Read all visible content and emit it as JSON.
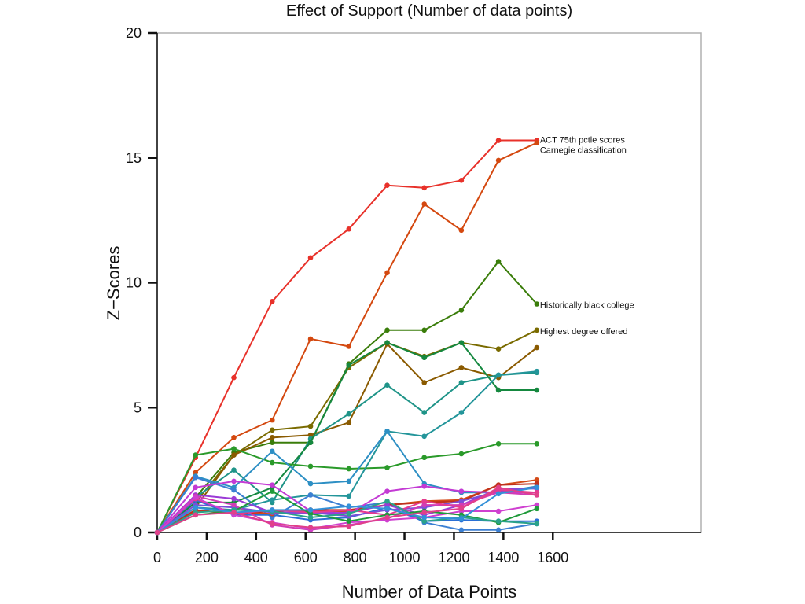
{
  "chart_data": {
    "type": "line",
    "title": "Effect of Support (Number of data points)",
    "xlabel": "Number of Data Points",
    "ylabel": "Z−Scores",
    "xlim": [
      0,
      2200
    ],
    "ylim": [
      0,
      20
    ],
    "xticks": [
      0,
      200,
      400,
      600,
      800,
      1000,
      1200,
      1400,
      1600
    ],
    "yticks": [
      0,
      5,
      10,
      15,
      20
    ],
    "grid": false,
    "legend": "none",
    "x": [
      0,
      155,
      310,
      465,
      620,
      775,
      930,
      1080,
      1230,
      1380,
      1535
    ],
    "series": [
      {
        "name": "ACT 75th pctle scores",
        "color": "#e8312a",
        "values": [
          0,
          3.0,
          6.2,
          9.25,
          11.0,
          12.15,
          13.9,
          13.8,
          14.1,
          15.7,
          15.7
        ]
      },
      {
        "name": "Carnegie classification",
        "color": "#d4480f",
        "values": [
          0,
          2.4,
          3.8,
          4.5,
          7.75,
          7.45,
          10.4,
          13.15,
          12.1,
          14.9,
          15.6
        ]
      },
      {
        "color": "#3a7d0a",
        "values": [
          0,
          1.4,
          3.2,
          3.6,
          3.6,
          6.75,
          8.1,
          8.1,
          8.9,
          10.85,
          9.15
        ]
      },
      {
        "color": "#7a6b00",
        "values": [
          0,
          1.2,
          3.1,
          4.1,
          4.25,
          6.6,
          7.6,
          7.05,
          7.6,
          7.35,
          8.1
        ]
      },
      {
        "color": "#8a5a00",
        "values": [
          0,
          1.0,
          3.1,
          3.8,
          3.9,
          4.4,
          7.55,
          6.0,
          6.6,
          6.2,
          7.4
        ]
      },
      {
        "color": "#1f9488",
        "values": [
          0,
          1.4,
          2.5,
          1.2,
          3.75,
          4.75,
          5.9,
          4.8,
          6.0,
          6.3,
          6.4
        ]
      },
      {
        "color": "#15883f",
        "values": [
          0,
          1.2,
          1.2,
          1.8,
          3.6,
          6.7,
          7.6,
          7.0,
          7.6,
          5.7,
          5.7
        ]
      },
      {
        "color": "#2a9a2a",
        "values": [
          0,
          3.1,
          3.35,
          2.8,
          2.65,
          2.55,
          2.6,
          3.0,
          3.15,
          3.55,
          3.55
        ]
      },
      {
        "color": "#23959a",
        "values": [
          0,
          1.0,
          0.9,
          1.3,
          1.5,
          1.45,
          4.05,
          3.85,
          4.8,
          6.3,
          6.45
        ]
      },
      {
        "color": "#2d8fc4",
        "values": [
          0,
          2.25,
          1.8,
          3.25,
          1.95,
          2.05,
          4.05,
          1.95,
          1.6,
          1.6,
          1.85
        ]
      },
      {
        "color": "#3b7fd3",
        "values": [
          0,
          2.2,
          1.7,
          0.6,
          1.5,
          1.0,
          1.2,
          0.4,
          0.1,
          0.1,
          0.35
        ]
      },
      {
        "color": "#2a6fd6",
        "values": [
          0,
          1.3,
          0.7,
          0.7,
          0.5,
          0.6,
          1.0,
          0.45,
          0.5,
          0.45,
          0.45
        ]
      },
      {
        "color": "#d44a18",
        "values": [
          0,
          0.85,
          0.8,
          0.75,
          0.85,
          0.85,
          1.1,
          1.25,
          1.3,
          1.9,
          2.1
        ]
      },
      {
        "color": "#c0311e",
        "values": [
          0,
          0.9,
          0.75,
          0.85,
          0.9,
          0.9,
          1.1,
          1.2,
          1.25,
          1.9,
          1.95
        ]
      },
      {
        "color": "#c33ad4",
        "values": [
          0,
          1.8,
          2.05,
          1.9,
          0.85,
          0.75,
          1.65,
          1.85,
          1.65,
          1.6,
          1.6
        ]
      },
      {
        "color": "#9b3ad6",
        "values": [
          0,
          1.5,
          1.35,
          0.8,
          0.75,
          0.8,
          1.1,
          0.7,
          1.1,
          1.75,
          1.75
        ]
      },
      {
        "color": "#7a4fd8",
        "values": [
          0,
          1.1,
          1.0,
          0.8,
          0.8,
          0.65,
          0.9,
          1.0,
          1.25,
          1.65,
          1.8
        ]
      },
      {
        "color": "#d13cb5",
        "values": [
          0,
          1.45,
          1.1,
          0.3,
          0.1,
          0.3,
          0.55,
          1.1,
          1.1,
          1.6,
          1.5
        ]
      },
      {
        "color": "#e63a8f",
        "values": [
          0,
          1.35,
          0.75,
          0.9,
          0.8,
          0.9,
          0.7,
          1.25,
          1.0,
          1.7,
          1.6
        ]
      },
      {
        "color": "#cf40d0",
        "values": [
          0,
          1.4,
          0.7,
          0.4,
          0.15,
          0.4,
          0.5,
          0.6,
          0.85,
          0.85,
          1.1
        ]
      },
      {
        "color": "#1f9a3a",
        "values": [
          0,
          0.7,
          0.85,
          1.65,
          0.75,
          0.45,
          0.7,
          0.85,
          0.7,
          0.4,
          0.95
        ]
      },
      {
        "color": "#2aa28a",
        "values": [
          0,
          0.8,
          0.9,
          0.85,
          0.6,
          0.75,
          1.25,
          0.45,
          0.6,
          0.45,
          0.35
        ]
      },
      {
        "color": "#3390d8",
        "values": [
          0,
          1.0,
          0.8,
          0.9,
          0.9,
          1.05,
          0.95,
          0.6,
          0.55,
          1.55,
          1.8
        ]
      },
      {
        "color": "#e0408a",
        "values": [
          0,
          0.7,
          0.8,
          0.35,
          0.2,
          0.25,
          0.6,
          0.8,
          0.95,
          1.8,
          1.5
        ]
      }
    ],
    "annotations": [
      {
        "text": "ACT 75th pctle scores",
        "x": 1535,
        "y": 15.7
      },
      {
        "text": "Carnegie classification",
        "x": 1535,
        "y": 15.6
      },
      {
        "text": "Historically black college",
        "x": 1535,
        "y": 9.15
      },
      {
        "text": "Highest degree offered",
        "x": 1535,
        "y": 8.1
      }
    ]
  }
}
